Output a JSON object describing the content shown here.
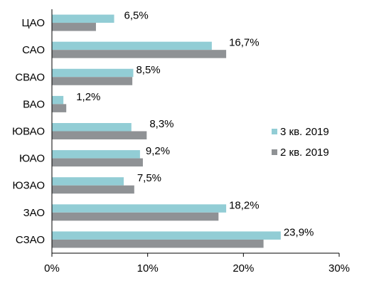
{
  "chart_data": {
    "type": "bar",
    "orientation": "horizontal",
    "categories": [
      "ЦАО",
      "САО",
      "СВАО",
      "ВАО",
      "ЮВАО",
      "ЮАО",
      "ЮЗАО",
      "ЗАО",
      "СЗАО"
    ],
    "series": [
      {
        "name": "3 кв. 2019",
        "color": "#92CDD5",
        "values": [
          6.5,
          16.7,
          8.5,
          1.2,
          8.3,
          9.2,
          7.5,
          18.2,
          23.9
        ],
        "labels": [
          "6,5%",
          "16,7%",
          "8,5%",
          "1,2%",
          "8,3%",
          "9,2%",
          "7,5%",
          "18,2%",
          "23,9%"
        ]
      },
      {
        "name": "2 кв. 2019",
        "color": "#8F9295",
        "values": [
          4.6,
          18.2,
          8.4,
          1.5,
          9.9,
          9.5,
          8.6,
          17.4,
          22.1
        ]
      }
    ],
    "x_ticks": [
      "0%",
      "10%",
      "20%",
      "30%"
    ],
    "xlim": [
      0,
      30
    ],
    "title": "",
    "xlabel": "",
    "ylabel": "",
    "grid": false,
    "legend_position": "right"
  }
}
